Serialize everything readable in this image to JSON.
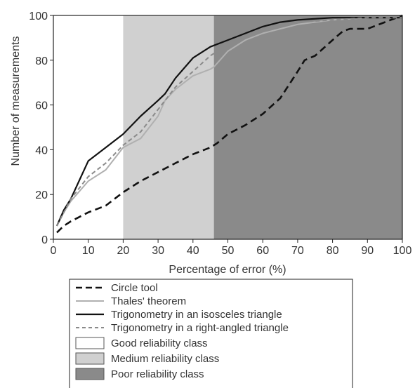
{
  "chart_data": {
    "type": "line",
    "xlabel": "Percentage of error (%)",
    "ylabel": "Number of measurements",
    "xlim": [
      0,
      100
    ],
    "ylim": [
      0,
      100
    ],
    "x_ticks": [
      0,
      10,
      20,
      30,
      40,
      50,
      60,
      70,
      80,
      90,
      100
    ],
    "y_ticks": [
      0,
      20,
      40,
      60,
      80,
      100
    ],
    "x_tick_labels": [
      "0",
      "10",
      "20",
      "30",
      "40",
      "50",
      "60",
      "70",
      "80",
      "90",
      "100"
    ],
    "y_tick_labels": [
      "0",
      "20",
      "40",
      "60",
      "80",
      "100"
    ],
    "grid": false,
    "legend_position": "bottom",
    "bands": [
      {
        "name": "Good reliability class",
        "x_start": 0,
        "x_end": 20,
        "color": "#ffffff"
      },
      {
        "name": "Medium reliability class",
        "x_start": 20,
        "x_end": 46,
        "color": "#d0d0d0"
      },
      {
        "name": "Poor reliability class",
        "x_start": 46,
        "x_end": 100,
        "color": "#8a8a8a"
      }
    ],
    "series": [
      {
        "name": "Circle tool",
        "color": "#111111",
        "style": "dashed-bold",
        "points": [
          [
            1,
            3
          ],
          [
            3,
            6
          ],
          [
            5,
            8
          ],
          [
            10,
            12
          ],
          [
            15,
            15
          ],
          [
            20,
            21
          ],
          [
            25,
            26
          ],
          [
            30,
            30
          ],
          [
            35,
            34
          ],
          [
            40,
            38
          ],
          [
            45,
            41
          ],
          [
            47,
            43
          ],
          [
            50,
            47
          ],
          [
            55,
            51
          ],
          [
            60,
            56
          ],
          [
            65,
            63
          ],
          [
            70,
            75
          ],
          [
            72,
            80
          ],
          [
            75,
            82
          ],
          [
            80,
            89
          ],
          [
            83,
            93
          ],
          [
            85,
            94
          ],
          [
            90,
            94
          ],
          [
            95,
            97
          ],
          [
            100,
            100
          ]
        ]
      },
      {
        "name": "Thales' theorem",
        "color": "#b0b0b0",
        "style": "solid",
        "points": [
          [
            1,
            6
          ],
          [
            3,
            12
          ],
          [
            5,
            17
          ],
          [
            10,
            26
          ],
          [
            15,
            31
          ],
          [
            20,
            41
          ],
          [
            25,
            45
          ],
          [
            28,
            51
          ],
          [
            30,
            55
          ],
          [
            32,
            62
          ],
          [
            35,
            67
          ],
          [
            40,
            73
          ],
          [
            45,
            76
          ],
          [
            46,
            77
          ],
          [
            50,
            84
          ],
          [
            55,
            89
          ],
          [
            60,
            92
          ],
          [
            65,
            94
          ],
          [
            70,
            96
          ],
          [
            80,
            98
          ],
          [
            90,
            99
          ],
          [
            100,
            99
          ]
        ]
      },
      {
        "name": "Trigonometry in an isosceles triangle",
        "color": "#111111",
        "style": "solid",
        "points": [
          [
            1,
            6
          ],
          [
            3,
            13
          ],
          [
            5,
            18
          ],
          [
            10,
            35
          ],
          [
            15,
            41
          ],
          [
            20,
            47
          ],
          [
            25,
            55
          ],
          [
            30,
            62
          ],
          [
            32,
            65
          ],
          [
            35,
            72
          ],
          [
            40,
            81
          ],
          [
            45,
            86
          ],
          [
            50,
            89
          ],
          [
            55,
            92
          ],
          [
            60,
            95
          ],
          [
            65,
            97
          ],
          [
            70,
            98
          ],
          [
            80,
            99
          ],
          [
            90,
            99
          ],
          [
            100,
            99
          ]
        ]
      },
      {
        "name": "Trigonometry in a right-angled triangle",
        "color": "#8a8a8a",
        "style": "dashed",
        "points": [
          [
            1,
            6
          ],
          [
            3,
            12
          ],
          [
            5,
            18
          ],
          [
            10,
            28
          ],
          [
            15,
            34
          ],
          [
            20,
            42
          ],
          [
            25,
            48
          ],
          [
            30,
            58
          ],
          [
            35,
            68
          ],
          [
            40,
            75
          ],
          [
            45,
            82
          ],
          [
            50,
            87
          ],
          [
            55,
            91
          ],
          [
            60,
            94
          ],
          [
            65,
            96
          ],
          [
            70,
            97
          ],
          [
            80,
            98
          ],
          [
            90,
            99
          ],
          [
            100,
            99
          ]
        ]
      }
    ]
  },
  "legend": [
    {
      "label": "Circle tool",
      "kind": "line",
      "color": "#111111",
      "dash": "9,5",
      "width": 2.6
    },
    {
      "label": "Thales' theorem",
      "kind": "line",
      "color": "#b0b0b0",
      "dash": "",
      "width": 2
    },
    {
      "label": "Trigonometry in an isosceles triangle",
      "kind": "line",
      "color": "#111111",
      "dash": "",
      "width": 2.2
    },
    {
      "label": "Trigonometry in a right-angled triangle",
      "kind": "line",
      "color": "#8a8a8a",
      "dash": "5,4",
      "width": 2
    },
    {
      "label": "Good reliability class",
      "kind": "box",
      "color": "#ffffff"
    },
    {
      "label": "Medium reliability class",
      "kind": "box",
      "color": "#d0d0d0"
    },
    {
      "label": "Poor reliability class",
      "kind": "box",
      "color": "#8a8a8a"
    }
  ]
}
